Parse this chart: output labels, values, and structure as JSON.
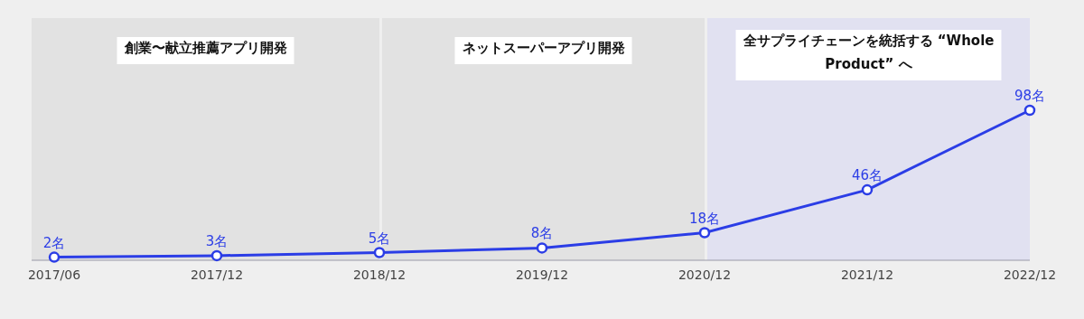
{
  "chart_data": {
    "type": "line",
    "categories": [
      "2017/06",
      "2017/12",
      "2018/12",
      "2019/12",
      "2020/12",
      "2021/12",
      "2022/12"
    ],
    "values": [
      2,
      3,
      5,
      8,
      18,
      46,
      98
    ],
    "value_labels": [
      "2名",
      "3名",
      "5名",
      "8名",
      "18名",
      "46名",
      "98名"
    ],
    "color": "#2b3de6",
    "marker": "circle",
    "line_style": "solid",
    "bands": [
      {
        "axis": "x",
        "from": "2017/06",
        "to": "2018/12",
        "label": "創業〜献立推薦アプリ開発",
        "color": "#e2e2e2"
      },
      {
        "axis": "x",
        "from": "2018/12",
        "to": "2020/12",
        "label": "ネットスーパーアプリ開発",
        "color": "#e2e2e2"
      },
      {
        "axis": "x",
        "from": "2020/12",
        "to": "2022/12",
        "label": "全サプライチェーンを統括する “Whole Product” へ",
        "color": "#e1e1f1"
      }
    ]
  }
}
